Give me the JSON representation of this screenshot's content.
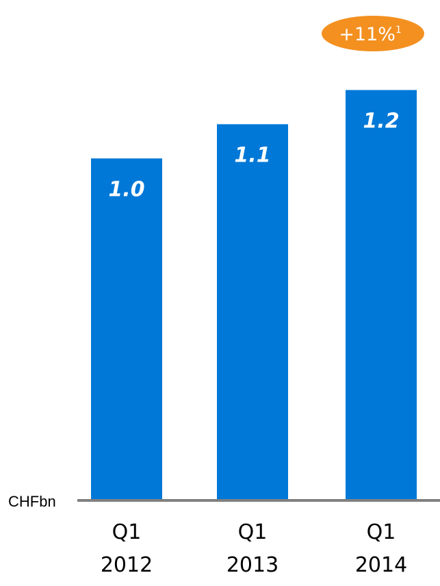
{
  "chart_data": {
    "type": "bar",
    "unit_label": "CHFbn",
    "categories": [
      [
        "Q1",
        "2012"
      ],
      [
        "Q1",
        "2013"
      ],
      [
        "Q1",
        "2014"
      ]
    ],
    "values": [
      1.0,
      1.1,
      1.2
    ],
    "data_labels": [
      "1.0",
      "1.1",
      "1.2"
    ],
    "ylim": [
      0,
      1.235
    ],
    "grid": false,
    "annotation": {
      "text": "+11%",
      "superscript": "1",
      "attached_to": "Q1 2014"
    }
  },
  "colors": {
    "bar": "#0078d7",
    "baseline": "#808080",
    "badge": "#f39020",
    "bar_label": "#ffffff",
    "text": "#000000"
  }
}
